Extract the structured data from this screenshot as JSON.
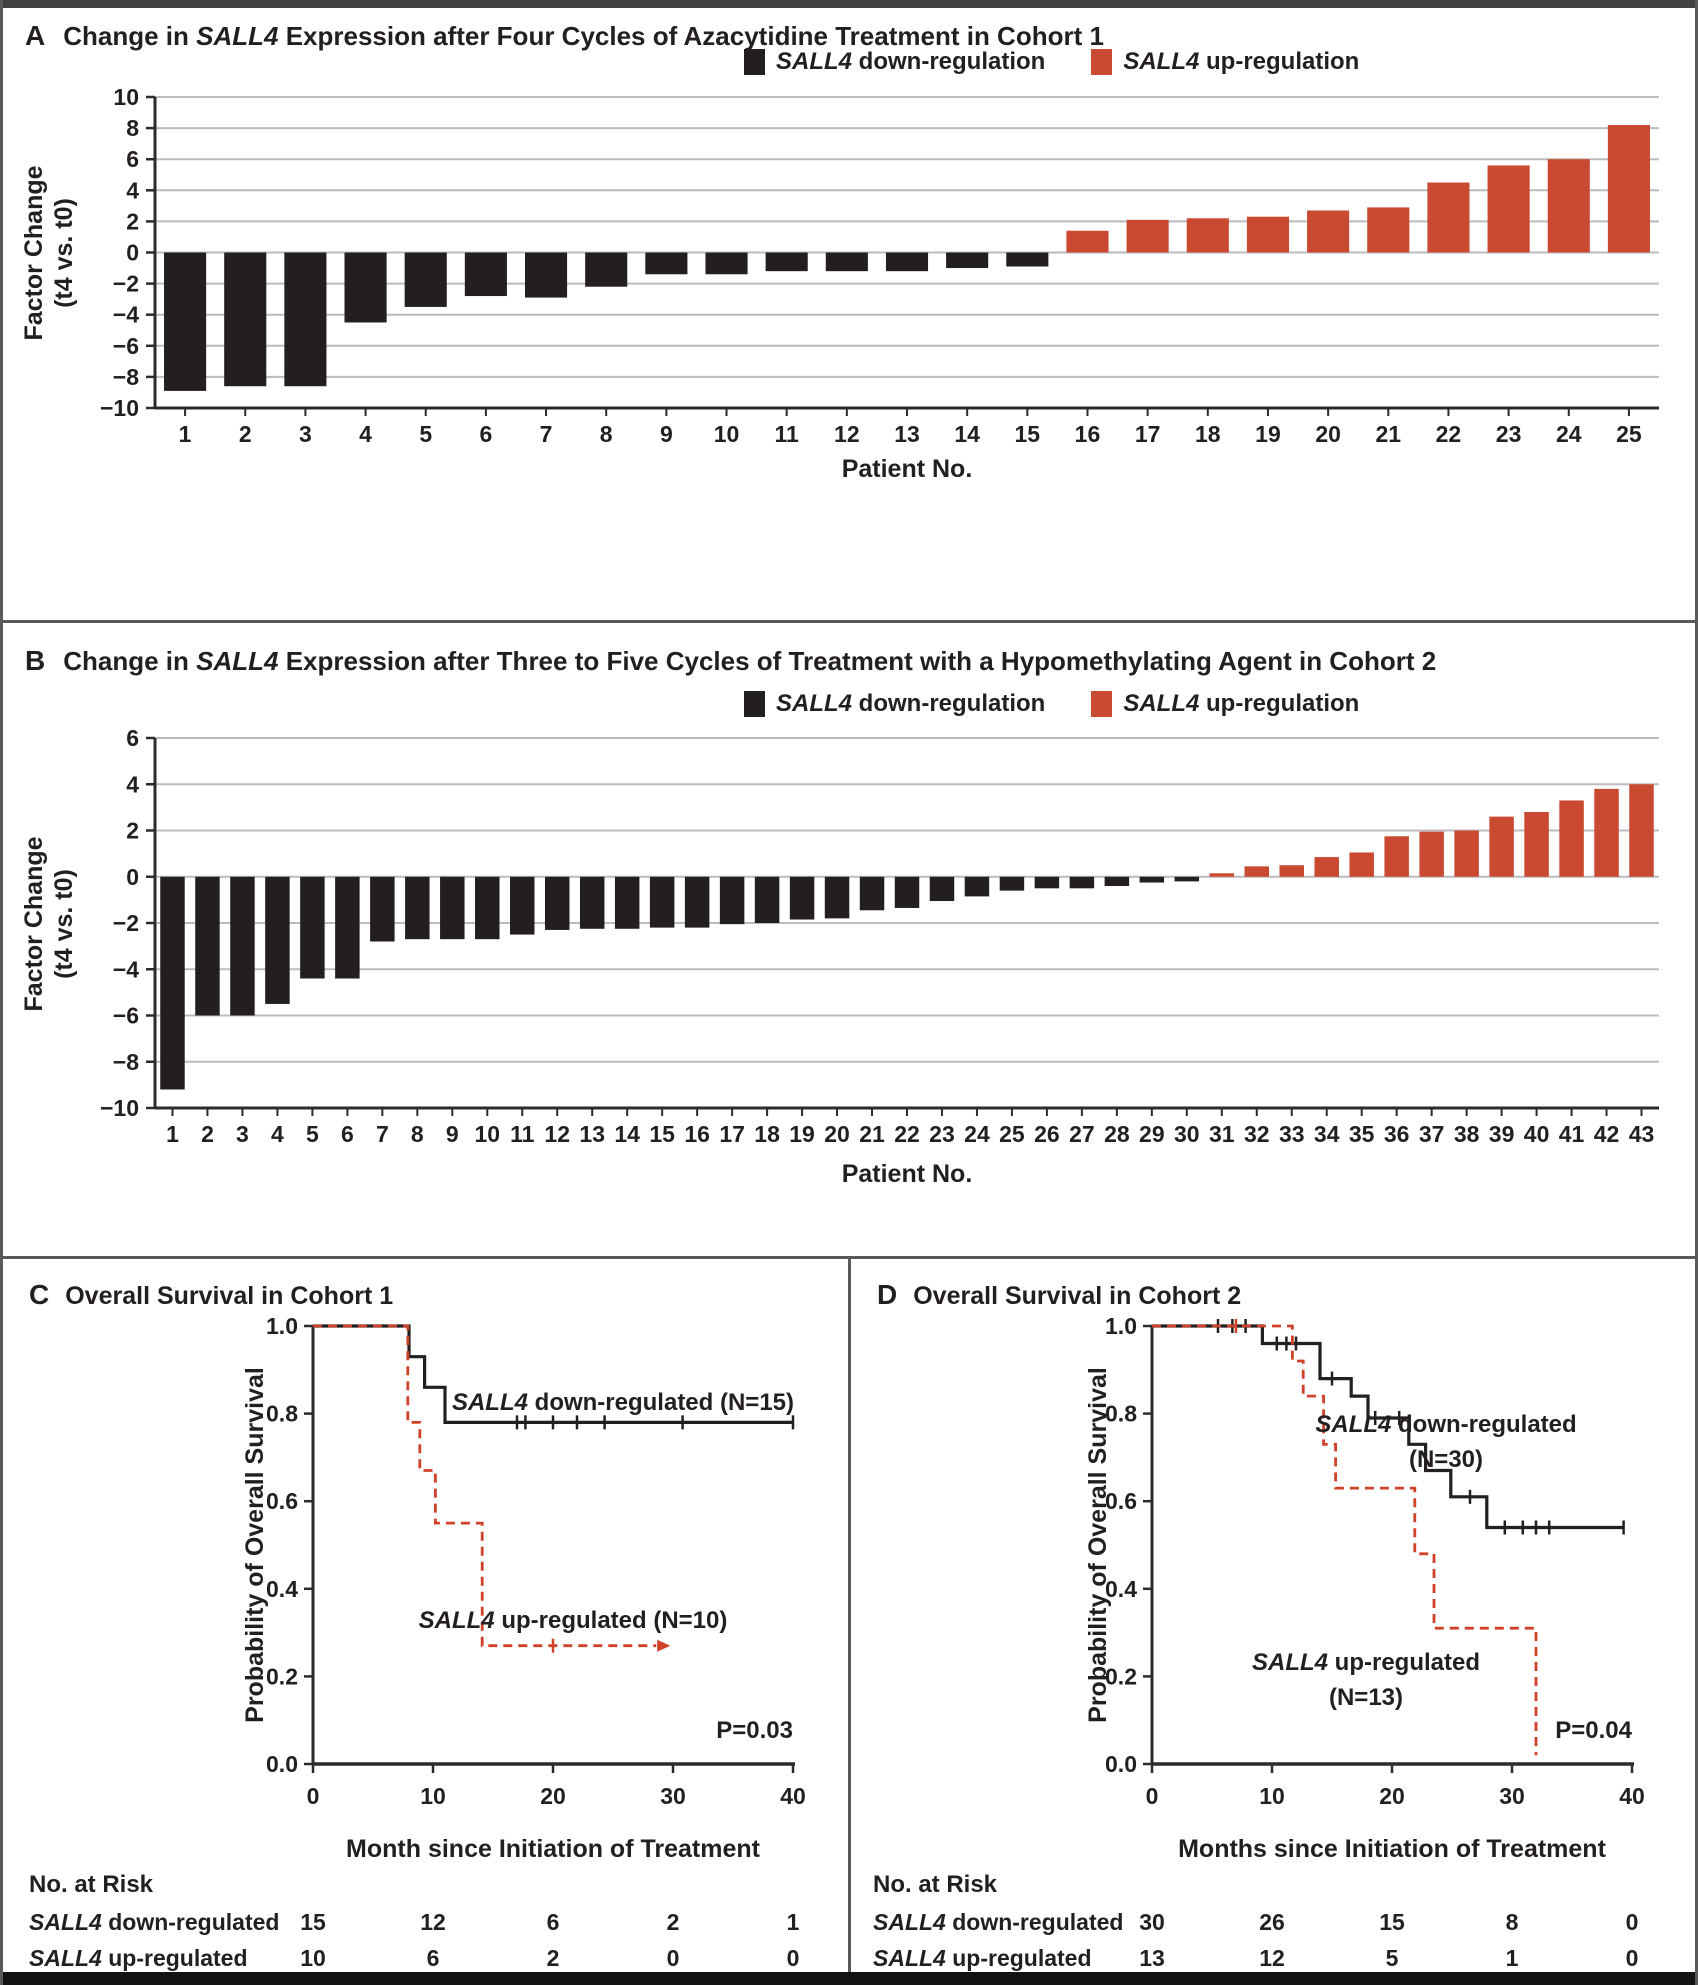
{
  "colors": {
    "down": "#231f20",
    "up": "#c94a31",
    "up_line": "#cf4229",
    "grid": "#bcbcc0",
    "axis": "#2b2b2d",
    "frame": "#59595b"
  },
  "panel_a": {
    "letter": "A",
    "title_pre": "Change in ",
    "gene": "SALL4",
    "title_post": " Expression after Four Cycles of Azacytidine Treatment in Cohort 1",
    "legend": {
      "gene": "SALL4",
      "down_rest": " down-regulation",
      "up_rest": " up-regulation"
    },
    "ylabel_line1": "Factor Change",
    "ylabel_line2": "(t4 vs. t0)",
    "xlabel": "Patient No."
  },
  "panel_b": {
    "letter": "B",
    "title_pre": "Change in ",
    "gene": "SALL4",
    "title_post": " Expression after Three to Five Cycles of Treatment with a Hypomethylating Agent in Cohort 2",
    "legend": {
      "gene": "SALL4",
      "down_rest": " down-regulation",
      "up_rest": " up-regulation"
    },
    "ylabel_line1": "Factor Change",
    "ylabel_line2": "(t4 vs. t0)",
    "xlabel": "Patient No."
  },
  "panel_c": {
    "letter": "C",
    "title": "Overall Survival in Cohort 1",
    "ylabel": "Probability of Overall Survival",
    "xlabel": "Month since Initiation of Treatment",
    "ann_down": {
      "gene": "SALL4",
      "rest": " down-regulated (N=15)"
    },
    "ann_up": {
      "gene": "SALL4",
      "rest": " up-regulated (N=10)"
    }
  },
  "panel_d": {
    "letter": "D",
    "title": "Overall Survival in Cohort 2",
    "ylabel": "Probability of Overall Survival",
    "xlabel": "Months since Initiation of Treatment",
    "ann_down": {
      "gene": "SALL4",
      "rest": " down-regulated",
      "line2": "(N=30)"
    },
    "ann_up": {
      "gene": "SALL4",
      "rest": " up-regulated",
      "line2": "(N=13)"
    }
  },
  "chart_data": [
    {
      "type": "bar",
      "panel": "A",
      "title": "Change in SALL4 Expression after Four Cycles of Azacytidine Treatment in Cohort 1",
      "xlabel": "Patient No.",
      "ylabel": "Factor Change (t4 vs. t0)",
      "legend": [
        "SALL4 down-regulation",
        "SALL4 up-regulation"
      ],
      "ylim": [
        -10,
        10
      ],
      "ytick_step": 2,
      "x_start": 1,
      "values": [
        -8.9,
        -8.6,
        -8.6,
        -4.5,
        -3.5,
        -2.8,
        -2.9,
        -2.2,
        -1.4,
        -1.4,
        -1.2,
        -1.2,
        -1.2,
        -1.0,
        -0.9,
        1.4,
        2.1,
        2.2,
        2.3,
        2.7,
        2.9,
        4.5,
        5.6,
        6.0,
        8.2
      ]
    },
    {
      "type": "bar",
      "panel": "B",
      "title": "Change in SALL4 Expression after Three to Five Cycles of Treatment with a Hypomethylating Agent in Cohort 2",
      "xlabel": "Patient No.",
      "ylabel": "Factor Change (t4 vs. t0)",
      "legend": [
        "SALL4 down-regulation",
        "SALL4 up-regulation"
      ],
      "ylim": [
        -10,
        6
      ],
      "ytick_step": 2,
      "x_start": 1,
      "values": [
        -9.2,
        -6.0,
        -6.0,
        -5.5,
        -4.4,
        -4.4,
        -2.8,
        -2.7,
        -2.7,
        -2.7,
        -2.5,
        -2.3,
        -2.25,
        -2.25,
        -2.2,
        -2.2,
        -2.05,
        -2.0,
        -1.85,
        -1.8,
        -1.45,
        -1.35,
        -1.05,
        -0.85,
        -0.6,
        -0.5,
        -0.5,
        -0.4,
        -0.25,
        -0.2,
        0.15,
        0.45,
        0.5,
        0.85,
        1.05,
        1.75,
        1.95,
        2.0,
        2.6,
        2.8,
        3.3,
        3.8,
        4.0
      ]
    },
    {
      "type": "km",
      "panel": "C",
      "title": "Overall Survival in Cohort 1",
      "xlabel": "Month since Initiation of Treatment",
      "ylabel": "Probability of Overall Survival",
      "xlim": [
        0,
        40
      ],
      "xticks": [
        0,
        10,
        20,
        30,
        40
      ],
      "ylim": [
        0,
        1
      ],
      "yticks": [
        0,
        0.2,
        0.4,
        0.6,
        0.8,
        1
      ],
      "p_value": "P=0.03",
      "series": [
        {
          "name": "SALL4 down-regulated (N=15)",
          "color": "#231f20",
          "style": "solid",
          "steps": [
            [
              0,
              1
            ],
            [
              8,
              1
            ],
            [
              8,
              0.93
            ],
            [
              9.3,
              0.93
            ],
            [
              9.3,
              0.86
            ],
            [
              11,
              0.86
            ],
            [
              11,
              0.78
            ],
            [
              40,
              0.78
            ]
          ],
          "censors": [
            [
              17,
              0.78
            ],
            [
              17.7,
              0.78
            ],
            [
              20,
              0.78
            ],
            [
              22,
              0.78
            ],
            [
              24.3,
              0.78
            ],
            [
              30.8,
              0.78
            ],
            [
              40,
              0.78
            ]
          ],
          "arrow_end": false
        },
        {
          "name": "SALL4 up-regulated (N=10)",
          "color": "#cf4229",
          "style": "dashed",
          "steps": [
            [
              0,
              1
            ],
            [
              7.9,
              1
            ],
            [
              7.9,
              0.78
            ],
            [
              8.9,
              0.78
            ],
            [
              8.9,
              0.67
            ],
            [
              10.2,
              0.67
            ],
            [
              10.2,
              0.55
            ],
            [
              14.1,
              0.55
            ],
            [
              14.1,
              0.27
            ],
            [
              28.6,
              0.27
            ]
          ],
          "censors": [
            [
              20,
              0.27
            ]
          ],
          "arrow_end": true
        }
      ],
      "risk_table": {
        "header": "No. at Risk",
        "ticks": [
          0,
          10,
          20,
          30,
          40
        ],
        "rows": [
          {
            "gene": "SALL4",
            "label": " down-regulated",
            "values": [
              15,
              12,
              6,
              2,
              1
            ]
          },
          {
            "gene": "SALL4",
            "label": " up-regulated",
            "values": [
              10,
              6,
              2,
              0,
              0
            ]
          }
        ]
      }
    },
    {
      "type": "km",
      "panel": "D",
      "title": "Overall Survival in Cohort 2",
      "xlabel": "Months since Initiation of Treatment",
      "ylabel": "Probability of Overall Survival",
      "xlim": [
        0,
        40
      ],
      "xticks": [
        0,
        10,
        20,
        30,
        40
      ],
      "ylim": [
        0,
        1
      ],
      "yticks": [
        0,
        0.2,
        0.4,
        0.6,
        0.8,
        1
      ],
      "p_value": "P=0.04",
      "series": [
        {
          "name": "SALL4 down-regulated (N=30)",
          "color": "#231f20",
          "style": "solid",
          "steps": [
            [
              0,
              1
            ],
            [
              9.2,
              1
            ],
            [
              9.2,
              0.96
            ],
            [
              14,
              0.96
            ],
            [
              14,
              0.88
            ],
            [
              16.6,
              0.88
            ],
            [
              16.6,
              0.84
            ],
            [
              18,
              0.84
            ],
            [
              18,
              0.79
            ],
            [
              21.4,
              0.79
            ],
            [
              21.4,
              0.73
            ],
            [
              22.8,
              0.73
            ],
            [
              22.8,
              0.67
            ],
            [
              24.9,
              0.67
            ],
            [
              24.9,
              0.61
            ],
            [
              27.9,
              0.61
            ],
            [
              27.9,
              0.54
            ],
            [
              39.3,
              0.54
            ]
          ],
          "censors": [
            [
              5.5,
              1
            ],
            [
              6.7,
              1
            ],
            [
              7.8,
              1
            ],
            [
              10.4,
              0.96
            ],
            [
              11.2,
              0.96
            ],
            [
              12,
              0.96
            ],
            [
              15,
              0.88
            ],
            [
              18.6,
              0.79
            ],
            [
              20.6,
              0.79
            ],
            [
              26.5,
              0.61
            ],
            [
              29.4,
              0.54
            ],
            [
              30.9,
              0.54
            ],
            [
              32,
              0.54
            ],
            [
              33.1,
              0.54
            ],
            [
              39.3,
              0.54
            ]
          ],
          "arrow_end": false
        },
        {
          "name": "SALL4 up-regulated (N=13)",
          "color": "#cf4229",
          "style": "dashed",
          "steps": [
            [
              0,
              1
            ],
            [
              11.7,
              1
            ],
            [
              11.7,
              0.92
            ],
            [
              12.6,
              0.92
            ],
            [
              12.6,
              0.84
            ],
            [
              14.3,
              0.84
            ],
            [
              14.3,
              0.73
            ],
            [
              15.3,
              0.73
            ],
            [
              15.3,
              0.63
            ],
            [
              21.9,
              0.63
            ],
            [
              21.9,
              0.48
            ],
            [
              23.5,
              0.48
            ],
            [
              23.5,
              0.31
            ],
            [
              32,
              0.31
            ],
            [
              32,
              0.02
            ]
          ],
          "censors": [
            [
              7,
              1
            ]
          ],
          "arrow_end": false
        }
      ],
      "risk_table": {
        "header": "No. at Risk",
        "ticks": [
          0,
          10,
          20,
          30,
          40
        ],
        "rows": [
          {
            "gene": "SALL4",
            "label": " down-regulated",
            "values": [
              30,
              26,
              15,
              8,
              0
            ]
          },
          {
            "gene": "SALL4",
            "label": " up-regulated",
            "values": [
              13,
              12,
              5,
              1,
              0
            ]
          }
        ]
      }
    }
  ]
}
